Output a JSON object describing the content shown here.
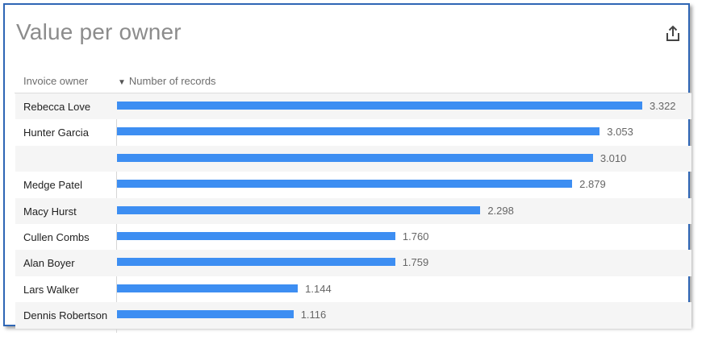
{
  "title": "Value per owner",
  "header": {
    "owner_label": "Invoice owner",
    "measure_label": "Number of records"
  },
  "icons": {
    "share": "share-export-icon",
    "sort": "sort-desc-triangle-icon"
  },
  "colors": {
    "bar": "#3d8ef2",
    "frame_border": "#2f66b5"
  },
  "chart_data": {
    "type": "bar",
    "orientation": "horizontal",
    "categories": [
      "Rebecca Love",
      "Hunter Garcia",
      "",
      "Medge Patel",
      "Macy Hurst",
      "Cullen Combs",
      "Alan Boyer",
      "Lars Walker",
      "Dennis Robertson"
    ],
    "values": [
      3322,
      3053,
      3010,
      2879,
      2298,
      1760,
      1759,
      1144,
      1116
    ],
    "value_labels": [
      "3.322",
      "3.053",
      "3.010",
      "2.879",
      "2.298",
      "1.760",
      "1.759",
      "1.144",
      "1.116"
    ],
    "xlabel": "Number of records",
    "ylabel": "Invoice owner",
    "sort": "descending"
  }
}
